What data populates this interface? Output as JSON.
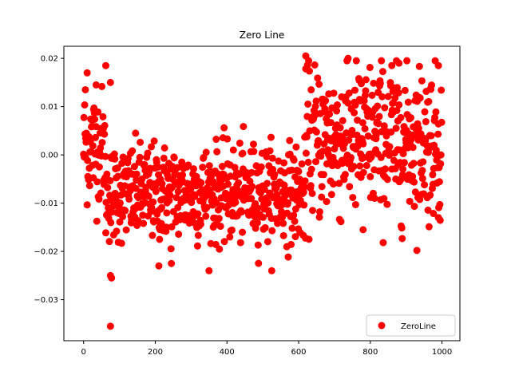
{
  "chart_data": {
    "type": "scatter",
    "title": "Zero Line",
    "xlabel": "",
    "ylabel": "",
    "xlim": [
      -55,
      1050
    ],
    "ylim": [
      -0.0385,
      0.0225
    ],
    "x_ticks": [
      0,
      200,
      400,
      600,
      800,
      1000
    ],
    "x_tick_labels": [
      "0",
      "200",
      "400",
      "600",
      "800",
      "1000"
    ],
    "y_ticks": [
      -0.03,
      -0.02,
      -0.01,
      0.0,
      0.01,
      0.02
    ],
    "y_tick_labels": [
      "−0.03",
      "−0.02",
      "−0.01",
      "0.00",
      "0.01",
      "0.02"
    ],
    "grid": false,
    "legend": {
      "position": "lower-right",
      "entries": [
        "ZeroLine"
      ]
    },
    "series": [
      {
        "name": "ZeroLine",
        "color": "#ff0000",
        "marker": "circle",
        "n_points": 1000,
        "segments": [
          {
            "x_range": [
              0,
              60
            ],
            "mean": 0.002,
            "sd": 0.006
          },
          {
            "x_range": [
              60,
              620
            ],
            "mean": -0.008,
            "sd": 0.005
          },
          {
            "x_range": [
              620,
              1000
            ],
            "mean": 0.003,
            "sd": 0.008
          }
        ],
        "notable_points": [
          {
            "x": 5,
            "y": 0.0135
          },
          {
            "x": 10,
            "y": 0.017
          },
          {
            "x": 35,
            "y": 0.0145
          },
          {
            "x": 62,
            "y": 0.0185
          },
          {
            "x": 75,
            "y": 0.015
          },
          {
            "x": 75,
            "y": -0.025
          },
          {
            "x": 78,
            "y": -0.0255
          },
          {
            "x": 75,
            "y": -0.0355
          },
          {
            "x": 210,
            "y": -0.023
          },
          {
            "x": 245,
            "y": -0.0225
          },
          {
            "x": 620,
            "y": 0.0205
          },
          {
            "x": 738,
            "y": 0.02
          },
          {
            "x": 860,
            "y": 0.0185
          },
          {
            "x": 880,
            "y": 0.019
          },
          {
            "x": 990,
            "y": 0.0185
          },
          {
            "x": 990,
            "y": -0.013
          },
          {
            "x": 780,
            "y": -0.0155
          }
        ]
      }
    ]
  }
}
